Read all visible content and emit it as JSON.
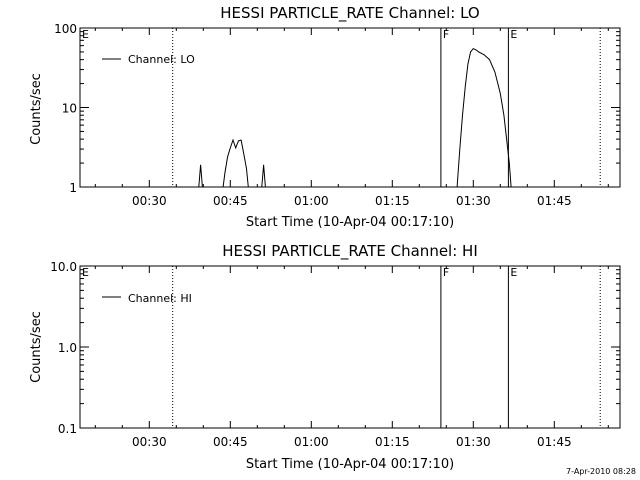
{
  "chart_data": [
    {
      "type": "line",
      "title": "HESSI PARTICLE_RATE Channel: LO",
      "xlabel": "Start Time (10-Apr-04 00:17:10)",
      "ylabel": "Counts/sec",
      "y_scale": "log",
      "ylim": [
        1,
        100
      ],
      "xlim": [
        "00:17:10",
        "01:57:10"
      ],
      "x_ticks": [
        "00:30",
        "00:45",
        "01:00",
        "01:15",
        "01:30",
        "01:45"
      ],
      "y_ticks": [
        "1",
        "10",
        "100"
      ],
      "legend": {
        "label": "Channel: LO",
        "position": "top-left"
      },
      "markers": [
        {
          "label": "E",
          "time": "00:17:10",
          "style": "solid"
        },
        {
          "label": "",
          "time": "00:34:20",
          "style": "dotted"
        },
        {
          "label": "F",
          "time": "01:24:00",
          "style": "solid"
        },
        {
          "label": "E",
          "time": "01:36:30",
          "style": "solid"
        },
        {
          "label": "",
          "time": "01:53:30",
          "style": "dotted"
        }
      ],
      "series": [
        {
          "name": "Channel: LO",
          "segments": [
            [
              [
                "00:39:10",
                1.0
              ],
              [
                "00:39:30",
                1.9
              ],
              [
                "00:39:50",
                1.0
              ]
            ],
            [
              [
                "00:43:40",
                1.0
              ],
              [
                "00:44:00",
                1.5
              ],
              [
                "00:44:30",
                2.4
              ],
              [
                "00:45:00",
                3.1
              ],
              [
                "00:45:30",
                3.9
              ],
              [
                "00:46:00",
                3.1
              ],
              [
                "00:46:30",
                3.8
              ],
              [
                "00:47:00",
                3.9
              ],
              [
                "00:47:30",
                2.6
              ],
              [
                "00:48:00",
                1.7
              ],
              [
                "00:48:20",
                1.0
              ]
            ],
            [
              [
                "00:50:50",
                1.0
              ],
              [
                "00:51:10",
                1.9
              ],
              [
                "00:51:30",
                1.0
              ]
            ],
            [
              [
                "01:27:00",
                1.0
              ],
              [
                "01:27:30",
                3.0
              ],
              [
                "01:28:00",
                8.0
              ],
              [
                "01:28:30",
                18
              ],
              [
                "01:29:00",
                35
              ],
              [
                "01:29:30",
                50
              ],
              [
                "01:30:00",
                55
              ],
              [
                "01:30:30",
                53
              ],
              [
                "01:31:00",
                50
              ],
              [
                "01:32:00",
                46
              ],
              [
                "01:33:00",
                40
              ],
              [
                "01:34:00",
                28
              ],
              [
                "01:35:00",
                15
              ],
              [
                "01:35:40",
                8
              ],
              [
                "01:36:10",
                4
              ],
              [
                "01:36:40",
                2
              ],
              [
                "01:37:00",
                1.0
              ]
            ]
          ]
        }
      ]
    },
    {
      "type": "line",
      "title": "HESSI PARTICLE_RATE Channel: HI",
      "xlabel": "Start Time (10-Apr-04 00:17:10)",
      "ylabel": "Counts/sec",
      "y_scale": "log",
      "ylim": [
        0.1,
        10
      ],
      "xlim": [
        "00:17:10",
        "01:57:10"
      ],
      "x_ticks": [
        "00:30",
        "00:45",
        "01:00",
        "01:15",
        "01:30",
        "01:45"
      ],
      "y_ticks": [
        "0.1",
        "1.0",
        "10.0"
      ],
      "legend": {
        "label": "Channel: HI",
        "position": "top-left"
      },
      "markers": [
        {
          "label": "E",
          "time": "00:17:10",
          "style": "solid"
        },
        {
          "label": "",
          "time": "00:34:20",
          "style": "dotted"
        },
        {
          "label": "F",
          "time": "01:24:00",
          "style": "solid"
        },
        {
          "label": "E",
          "time": "01:36:30",
          "style": "solid"
        },
        {
          "label": "",
          "time": "01:53:30",
          "style": "dotted"
        }
      ],
      "series": [
        {
          "name": "Channel: HI",
          "segments": []
        }
      ]
    }
  ],
  "footer": {
    "timestamp": "7-Apr-2010 08:28"
  }
}
